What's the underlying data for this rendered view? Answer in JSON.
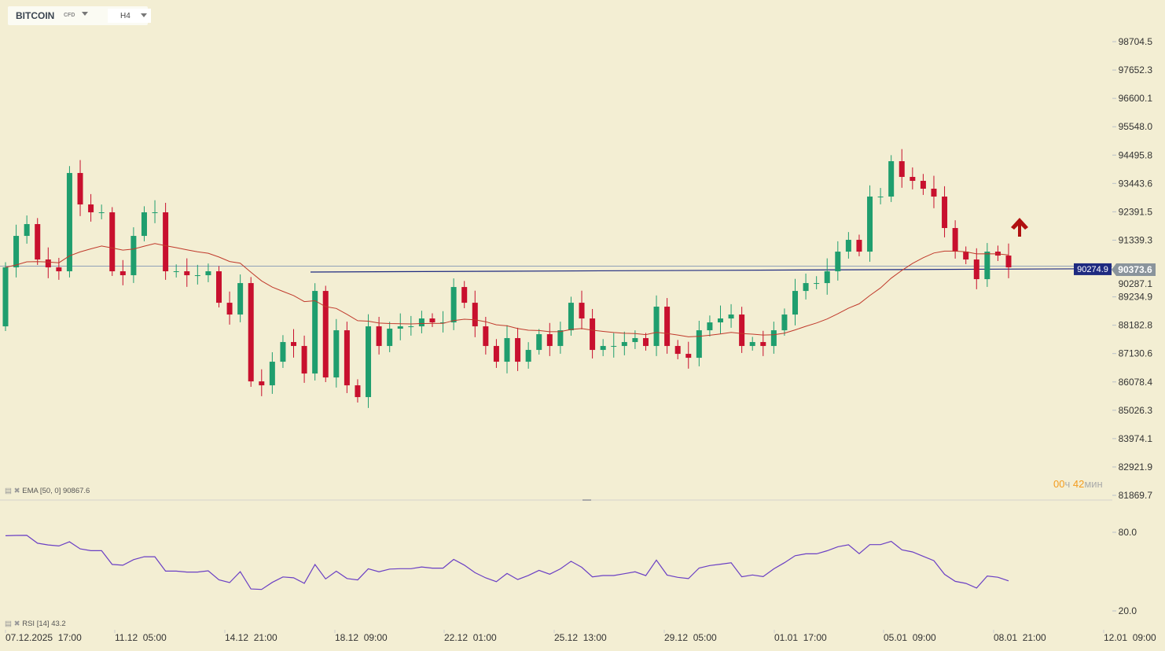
{
  "header": {
    "symbol": "BITCOIN",
    "symbol_type": "CFD",
    "timeframe": "H4"
  },
  "indicators": {
    "ema_label": "EMA [50, 0] 90867.6",
    "rsi_label": "RSI [14] 43.2"
  },
  "timer": {
    "hours": "00",
    "hours_unit": "ч",
    "minutes": "42",
    "minutes_unit": "мин"
  },
  "price_tags": {
    "line_price": "90274.9",
    "current_price": "90373.6"
  },
  "colors": {
    "up": "#1f9e6e",
    "down": "#c8102e",
    "ema": "#c0392b",
    "rsi": "#6a3fc4",
    "line": "#1e2a80",
    "current": "#8a949c",
    "background": "#f3eed3"
  },
  "chart_data": {
    "type": "candlestick",
    "title": "BITCOIN CFD H4",
    "y_ticks": [
      "98704.5",
      "97652.3",
      "96600.1",
      "95548.0",
      "94495.8",
      "93443.6",
      "92391.5",
      "91339.3",
      "90287.1",
      "89234.9",
      "88182.8",
      "87130.6",
      "86078.4",
      "85026.3",
      "83974.1",
      "82921.9",
      "81869.7"
    ],
    "ylim": [
      81869.7,
      98704.5
    ],
    "x_ticks": [
      "07.12.2025  17:00",
      "11.12  05:00",
      "14.12  21:00",
      "18.12  09:00",
      "22.12  01:00",
      "25.12  13:00",
      "29.12  05:00",
      "01.01  17:00",
      "05.01  09:00",
      "08.01  21:00",
      "12.01  09:00"
    ],
    "first_open": 88141,
    "closes": [
      90330,
      91497,
      91935,
      90621,
      90330,
      90184,
      93831,
      92664,
      92372,
      92372,
      90184,
      90038,
      91497,
      92372,
      92372,
      90184,
      90184,
      90038,
      90038,
      90184,
      89016,
      88579,
      89746,
      86098,
      85952,
      86828,
      87558,
      87412,
      86390,
      89454,
      86244,
      87995,
      85952,
      85515,
      88141,
      87412,
      88054,
      88141,
      88141,
      88433,
      88287,
      88287,
      89600,
      89016,
      88141,
      87412,
      86828,
      87704,
      86828,
      87266,
      87850,
      87412,
      87995,
      89016,
      88433,
      87266,
      87412,
      87412,
      87558,
      87704,
      87412,
      88871,
      87412,
      87120,
      86974,
      87995,
      88287,
      88433,
      88579,
      87412,
      87558,
      87412,
      87995,
      88579,
      89454,
      89746,
      89746,
      90184,
      90913,
      91351,
      90913,
      92956,
      92956,
      94269,
      93686,
      93540,
      93248,
      92956,
      91789,
      90913,
      90621,
      89892,
      90913,
      90767,
      90330
    ],
    "wick": 320,
    "horizontal_lines": [
      90274.9,
      90373.6
    ],
    "rsi_ticks": [
      "80.0",
      "20.0"
    ],
    "rsi_range": [
      20,
      80
    ]
  }
}
